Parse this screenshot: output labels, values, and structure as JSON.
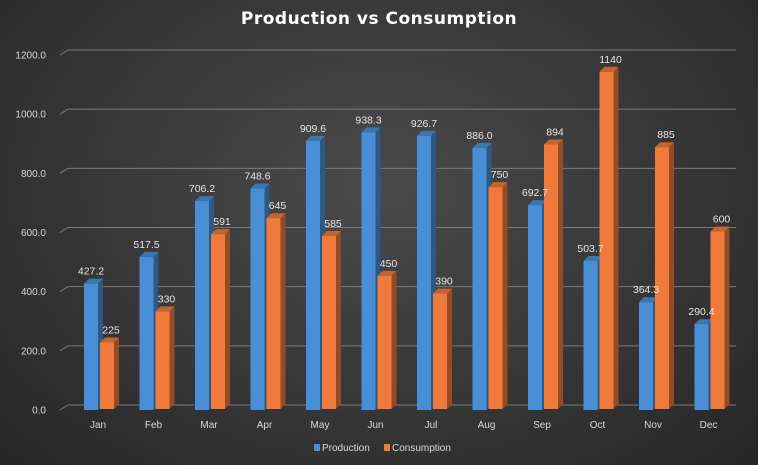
{
  "chart_data": {
    "type": "bar",
    "title": "Production vs Consumption",
    "xlabel": "",
    "ylabel": "",
    "ylim": [
      0,
      1200
    ],
    "yticks": [
      "0.0",
      "200.0",
      "400.0",
      "600.0",
      "800.0",
      "1000.0",
      "1200.0"
    ],
    "categories": [
      "Jan",
      "Feb",
      "Mar",
      "Apr",
      "May",
      "Jun",
      "Jul",
      "Aug",
      "Sep",
      "Oct",
      "Nov",
      "Dec"
    ],
    "series": [
      {
        "name": "Production",
        "color": "#4a8fd6",
        "values": [
          427.2,
          517.5,
          706.2,
          748.6,
          909.6,
          938.3,
          926.7,
          886.0,
          692.7,
          503.7,
          364.3,
          290.4
        ],
        "labels": [
          "427.2",
          "517.5",
          "706.2",
          "748.6",
          "909.6",
          "938.3",
          "926.7",
          "886.0",
          "692.7",
          "503.7",
          "364.3",
          "290.4"
        ]
      },
      {
        "name": "Consumption",
        "color": "#ef7a3c",
        "values": [
          225,
          330,
          591,
          645,
          585,
          450,
          390,
          750,
          894,
          1140,
          885,
          600
        ],
        "labels": [
          "225",
          "330",
          "591",
          "645",
          "585",
          "450",
          "390",
          "750",
          "894",
          "1140",
          "885",
          "600"
        ]
      }
    ],
    "grid": true,
    "legend": "bottom"
  }
}
